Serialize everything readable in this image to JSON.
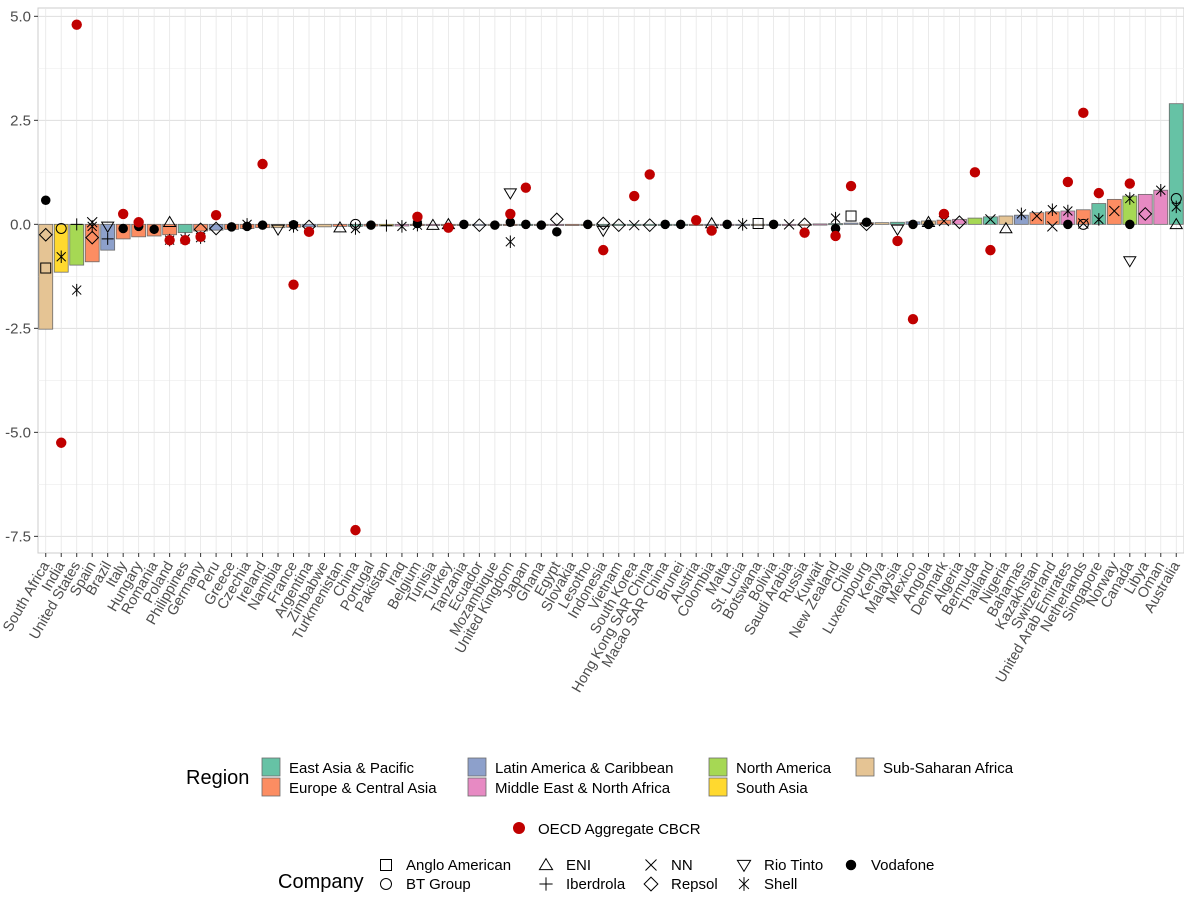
{
  "chart_data": {
    "type": "bar",
    "title": "",
    "xlabel": "",
    "ylabel": "",
    "ylim": [
      -7.9,
      5.2
    ],
    "yticks": [
      5.0,
      2.5,
      0.0,
      -2.5,
      -5.0,
      -7.5
    ],
    "ytick_labels": [
      "5.0",
      "2.5",
      "0.0",
      "-2.5",
      "-5.0",
      "-7.5"
    ],
    "grid": true,
    "categories": [
      "South Africa",
      "India",
      "United States",
      "Spain",
      "Brazil",
      "Italy",
      "Hungary",
      "Romania",
      "Poland",
      "Philippines",
      "Germany",
      "Peru",
      "Greece",
      "Czechia",
      "Ireland",
      "Namibia",
      "France",
      "Argentina",
      "Zimbabwe",
      "Turkmenistan",
      "China",
      "Portugal",
      "Pakistan",
      "Iraq",
      "Belgium",
      "Tunisia",
      "Turkey",
      "Tanzania",
      "Ecuador",
      "Mozambique",
      "United Kingdom",
      "Japan",
      "Ghana",
      "Egypt",
      "Slovakia",
      "Lesotho",
      "Indonesia",
      "Vietnam",
      "South Korea",
      "Hong Kong SAR China",
      "Macao SAR China",
      "Brunei",
      "Austria",
      "Colombia",
      "Malta",
      "St. Lucia",
      "Botswana",
      "Bolivia",
      "Saudi Arabia",
      "Russia",
      "Kuwait",
      "New Zealand",
      "Chile",
      "Luxembourg",
      "Kenya",
      "Malaysia",
      "Mexico",
      "Angola",
      "Denmark",
      "Algeria",
      "Bermuda",
      "Thailand",
      "Nigeria",
      "Bahamas",
      "Kazakhstan",
      "Switzerland",
      "United Arab Emirates",
      "Netherlands",
      "Singapore",
      "Norway",
      "Canada",
      "Libya",
      "Oman",
      "Australia"
    ],
    "bar_values": [
      -2.52,
      -1.15,
      -0.98,
      -0.9,
      -0.62,
      -0.35,
      -0.3,
      -0.28,
      -0.25,
      -0.2,
      -0.16,
      -0.14,
      -0.12,
      -0.1,
      -0.08,
      -0.08,
      -0.07,
      -0.06,
      -0.06,
      -0.05,
      -0.05,
      -0.04,
      -0.04,
      -0.04,
      -0.03,
      -0.03,
      -0.03,
      -0.02,
      -0.02,
      -0.02,
      -0.02,
      -0.02,
      -0.01,
      -0.01,
      -0.01,
      -0.01,
      -0.01,
      -0.01,
      -0.01,
      -0.01,
      -0.01,
      0.0,
      0.0,
      0.0,
      0.0,
      0.0,
      0.0,
      0.0,
      0.0,
      0.0,
      0.01,
      0.02,
      0.03,
      0.04,
      0.04,
      0.05,
      0.06,
      0.08,
      0.1,
      0.12,
      0.15,
      0.18,
      0.2,
      0.22,
      0.28,
      0.3,
      0.32,
      0.35,
      0.5,
      0.6,
      0.68,
      0.72,
      0.82,
      2.9
    ],
    "bar_regions": [
      "Sub-Saharan Africa",
      "South Asia",
      "North America",
      "Europe & Central Asia",
      "Latin America & Caribbean",
      "Europe & Central Asia",
      "Europe & Central Asia",
      "Europe & Central Asia",
      "Europe & Central Asia",
      "East Asia & Pacific",
      "Europe & Central Asia",
      "Latin America & Caribbean",
      "Europe & Central Asia",
      "Europe & Central Asia",
      "Europe & Central Asia",
      "Sub-Saharan Africa",
      "Europe & Central Asia",
      "Latin America & Caribbean",
      "Sub-Saharan Africa",
      "Europe & Central Asia",
      "East Asia & Pacific",
      "Europe & Central Asia",
      "South Asia",
      "Middle East & North Africa",
      "Europe & Central Asia",
      "Middle East & North Africa",
      "Europe & Central Asia",
      "Sub-Saharan Africa",
      "Latin America & Caribbean",
      "Sub-Saharan Africa",
      "Europe & Central Asia",
      "East Asia & Pacific",
      "Sub-Saharan Africa",
      "Middle East & North Africa",
      "Europe & Central Asia",
      "Sub-Saharan Africa",
      "East Asia & Pacific",
      "East Asia & Pacific",
      "East Asia & Pacific",
      "East Asia & Pacific",
      "East Asia & Pacific",
      "East Asia & Pacific",
      "Europe & Central Asia",
      "Latin America & Caribbean",
      "Middle East & North Africa",
      "Latin America & Caribbean",
      "Sub-Saharan Africa",
      "Latin America & Caribbean",
      "Middle East & North Africa",
      "Europe & Central Asia",
      "Middle East & North Africa",
      "East Asia & Pacific",
      "Latin America & Caribbean",
      "Europe & Central Asia",
      "Sub-Saharan Africa",
      "East Asia & Pacific",
      "Latin America & Caribbean",
      "Sub-Saharan Africa",
      "Europe & Central Asia",
      "Middle East & North Africa",
      "North America",
      "East Asia & Pacific",
      "Sub-Saharan Africa",
      "Latin America & Caribbean",
      "Europe & Central Asia",
      "Europe & Central Asia",
      "Middle East & North Africa",
      "Europe & Central Asia",
      "East Asia & Pacific",
      "Europe & Central Asia",
      "North America",
      "Middle East & North Africa",
      "Middle East & North Africa",
      "East Asia & Pacific"
    ],
    "oecd_aggregate": [
      {
        "i": 1,
        "y": -5.25
      },
      {
        "i": 2,
        "y": 4.8
      },
      {
        "i": 5,
        "y": 0.25
      },
      {
        "i": 6,
        "y": 0.05
      },
      {
        "i": 8,
        "y": -0.38
      },
      {
        "i": 9,
        "y": -0.38
      },
      {
        "i": 10,
        "y": -0.3
      },
      {
        "i": 11,
        "y": 0.22
      },
      {
        "i": 14,
        "y": 1.45
      },
      {
        "i": 16,
        "y": -1.45
      },
      {
        "i": 17,
        "y": -0.18
      },
      {
        "i": 20,
        "y": -7.35
      },
      {
        "i": 24,
        "y": 0.18
      },
      {
        "i": 26,
        "y": -0.08
      },
      {
        "i": 30,
        "y": 0.25
      },
      {
        "i": 31,
        "y": 0.88
      },
      {
        "i": 36,
        "y": -0.62
      },
      {
        "i": 38,
        "y": 0.68
      },
      {
        "i": 39,
        "y": 1.2
      },
      {
        "i": 42,
        "y": 0.1
      },
      {
        "i": 43,
        "y": -0.15
      },
      {
        "i": 49,
        "y": -0.2
      },
      {
        "i": 51,
        "y": -0.28
      },
      {
        "i": 52,
        "y": 0.92
      },
      {
        "i": 55,
        "y": -0.4
      },
      {
        "i": 56,
        "y": -2.28
      },
      {
        "i": 58,
        "y": 0.25
      },
      {
        "i": 60,
        "y": 1.25
      },
      {
        "i": 61,
        "y": -0.62
      },
      {
        "i": 66,
        "y": 1.02
      },
      {
        "i": 67,
        "y": 2.68
      },
      {
        "i": 68,
        "y": 0.75
      },
      {
        "i": 70,
        "y": 0.98
      }
    ],
    "company_points": [
      {
        "i": 0,
        "c": "Vodafone",
        "y": 0.58
      },
      {
        "i": 0,
        "c": "Anglo American",
        "y": -1.05
      },
      {
        "i": 0,
        "c": "Repsol",
        "y": -0.25
      },
      {
        "i": 1,
        "c": "Shell",
        "y": -0.78
      },
      {
        "i": 1,
        "c": "BT Group",
        "y": -0.1
      },
      {
        "i": 2,
        "c": "Shell",
        "y": -1.58
      },
      {
        "i": 2,
        "c": "Iberdrola",
        "y": 0.0
      },
      {
        "i": 3,
        "c": "NN",
        "y": 0.05
      },
      {
        "i": 3,
        "c": "Repsol",
        "y": -0.32
      },
      {
        "i": 3,
        "c": "Shell",
        "y": -0.05
      },
      {
        "i": 4,
        "c": "Iberdrola",
        "y": -0.35
      },
      {
        "i": 4,
        "c": "Rio Tinto",
        "y": -0.05
      },
      {
        "i": 5,
        "c": "Vodafone",
        "y": -0.1
      },
      {
        "i": 6,
        "c": "Vodafone",
        "y": -0.05
      },
      {
        "i": 7,
        "c": "Vodafone",
        "y": -0.12
      },
      {
        "i": 8,
        "c": "ENI",
        "y": 0.05
      },
      {
        "i": 8,
        "c": "Shell",
        "y": -0.38
      },
      {
        "i": 9,
        "c": "Shell",
        "y": -0.35
      },
      {
        "i": 10,
        "c": "Repsol",
        "y": -0.12
      },
      {
        "i": 10,
        "c": "Shell",
        "y": -0.32
      },
      {
        "i": 11,
        "c": "Repsol",
        "y": -0.1
      },
      {
        "i": 12,
        "c": "Vodafone",
        "y": -0.06
      },
      {
        "i": 13,
        "c": "Vodafone",
        "y": -0.05
      },
      {
        "i": 13,
        "c": "Shell",
        "y": 0.0
      },
      {
        "i": 14,
        "c": "Vodafone",
        "y": -0.02
      },
      {
        "i": 15,
        "c": "Rio Tinto",
        "y": -0.12
      },
      {
        "i": 16,
        "c": "Vodafone",
        "y": -0.01
      },
      {
        "i": 16,
        "c": "Shell",
        "y": -0.05
      },
      {
        "i": 17,
        "c": "Repsol",
        "y": -0.05
      },
      {
        "i": 19,
        "c": "ENI",
        "y": -0.08
      },
      {
        "i": 20,
        "c": "Shell",
        "y": -0.1
      },
      {
        "i": 20,
        "c": "BT Group",
        "y": 0.0
      },
      {
        "i": 21,
        "c": "Vodafone",
        "y": -0.02
      },
      {
        "i": 22,
        "c": "Iberdrola",
        "y": -0.03
      },
      {
        "i": 23,
        "c": "Shell",
        "y": -0.05
      },
      {
        "i": 24,
        "c": "Vodafone",
        "y": 0.02
      },
      {
        "i": 24,
        "c": "Shell",
        "y": -0.02
      },
      {
        "i": 25,
        "c": "ENI",
        "y": -0.02
      },
      {
        "i": 26,
        "c": "ENI",
        "y": 0.0
      },
      {
        "i": 27,
        "c": "Vodafone",
        "y": 0.0
      },
      {
        "i": 28,
        "c": "Repsol",
        "y": -0.02
      },
      {
        "i": 29,
        "c": "Vodafone",
        "y": -0.02
      },
      {
        "i": 30,
        "c": "Rio Tinto",
        "y": 0.75
      },
      {
        "i": 30,
        "c": "Shell",
        "y": -0.42
      },
      {
        "i": 30,
        "c": "Vodafone",
        "y": 0.05
      },
      {
        "i": 31,
        "c": "Vodafone",
        "y": 0.0
      },
      {
        "i": 32,
        "c": "Vodafone",
        "y": -0.02
      },
      {
        "i": 33,
        "c": "Vodafone",
        "y": -0.18
      },
      {
        "i": 33,
        "c": "Repsol",
        "y": 0.12
      },
      {
        "i": 35,
        "c": "Vodafone",
        "y": 0.0
      },
      {
        "i": 36,
        "c": "Repsol",
        "y": 0.02
      },
      {
        "i": 36,
        "c": "Rio Tinto",
        "y": -0.15
      },
      {
        "i": 37,
        "c": "Repsol",
        "y": -0.02
      },
      {
        "i": 38,
        "c": "NN",
        "y": -0.02
      },
      {
        "i": 39,
        "c": "Repsol",
        "y": -0.02
      },
      {
        "i": 40,
        "c": "Vodafone",
        "y": 0.0
      },
      {
        "i": 41,
        "c": "Vodafone",
        "y": 0.0
      },
      {
        "i": 43,
        "c": "ENI",
        "y": 0.02
      },
      {
        "i": 44,
        "c": "Vodafone",
        "y": 0.0
      },
      {
        "i": 45,
        "c": "Shell",
        "y": 0.0
      },
      {
        "i": 46,
        "c": "Anglo American",
        "y": 0.02
      },
      {
        "i": 47,
        "c": "Vodafone",
        "y": 0.0
      },
      {
        "i": 48,
        "c": "NN",
        "y": 0.0
      },
      {
        "i": 49,
        "c": "Repsol",
        "y": 0.0
      },
      {
        "i": 51,
        "c": "Shell",
        "y": 0.15
      },
      {
        "i": 51,
        "c": "Vodafone",
        "y": -0.1
      },
      {
        "i": 52,
        "c": "Anglo American",
        "y": 0.2
      },
      {
        "i": 53,
        "c": "Repsol",
        "y": 0.0
      },
      {
        "i": 53,
        "c": "Vodafone",
        "y": 0.05
      },
      {
        "i": 55,
        "c": "Rio Tinto",
        "y": -0.12
      },
      {
        "i": 56,
        "c": "Vodafone",
        "y": 0.0
      },
      {
        "i": 57,
        "c": "Vodafone",
        "y": 0.0
      },
      {
        "i": 57,
        "c": "ENI",
        "y": 0.05
      },
      {
        "i": 58,
        "c": "NN",
        "y": 0.08
      },
      {
        "i": 59,
        "c": "Repsol",
        "y": 0.05
      },
      {
        "i": 61,
        "c": "NN",
        "y": 0.12
      },
      {
        "i": 62,
        "c": "ENI",
        "y": -0.1
      },
      {
        "i": 63,
        "c": "Shell",
        "y": 0.25
      },
      {
        "i": 64,
        "c": "NN",
        "y": 0.2
      },
      {
        "i": 65,
        "c": "Shell",
        "y": 0.35
      },
      {
        "i": 65,
        "c": "NN",
        "y": -0.05
      },
      {
        "i": 66,
        "c": "Shell",
        "y": 0.32
      },
      {
        "i": 66,
        "c": "Vodafone",
        "y": 0.0
      },
      {
        "i": 67,
        "c": "BT Group",
        "y": 0.0
      },
      {
        "i": 67,
        "c": "NN",
        "y": 0.02
      },
      {
        "i": 68,
        "c": "Shell",
        "y": 0.12
      },
      {
        "i": 69,
        "c": "NN",
        "y": 0.32
      },
      {
        "i": 70,
        "c": "Rio Tinto",
        "y": -0.88
      },
      {
        "i": 70,
        "c": "Vodafone",
        "y": 0.0
      },
      {
        "i": 70,
        "c": "Shell",
        "y": 0.62
      },
      {
        "i": 71,
        "c": "Repsol",
        "y": 0.25
      },
      {
        "i": 72,
        "c": "Shell",
        "y": 0.82
      },
      {
        "i": 73,
        "c": "ENI",
        "y": 0.0
      },
      {
        "i": 73,
        "c": "Shell",
        "y": 0.42
      },
      {
        "i": 73,
        "c": "BT Group",
        "y": 0.62
      }
    ]
  },
  "legend": {
    "region_title": "Region",
    "regions": [
      {
        "name": "East Asia & Pacific",
        "color": "#66c2a5"
      },
      {
        "name": "Europe & Central Asia",
        "color": "#fc8d62"
      },
      {
        "name": "Latin America & Caribbean",
        "color": "#8da0cb"
      },
      {
        "name": "Middle East & North Africa",
        "color": "#e78ac3"
      },
      {
        "name": "North America",
        "color": "#a6d854"
      },
      {
        "name": "South Asia",
        "color": "#ffd92f"
      },
      {
        "name": "Sub-Saharan Africa",
        "color": "#e5c494"
      }
    ],
    "oecd_label": "OECD Aggregate CBCR",
    "oecd_color": "#c00000",
    "company_title": "Company",
    "companies": [
      {
        "name": "Anglo American",
        "shape": "square"
      },
      {
        "name": "BT Group",
        "shape": "circle"
      },
      {
        "name": "ENI",
        "shape": "triangle-up"
      },
      {
        "name": "Iberdrola",
        "shape": "plus"
      },
      {
        "name": "NN",
        "shape": "cross"
      },
      {
        "name": "Repsol",
        "shape": "diamond"
      },
      {
        "name": "Rio Tinto",
        "shape": "triangle-down"
      },
      {
        "name": "Shell",
        "shape": "asterisk"
      },
      {
        "name": "Vodafone",
        "shape": "filled-circle"
      }
    ]
  }
}
